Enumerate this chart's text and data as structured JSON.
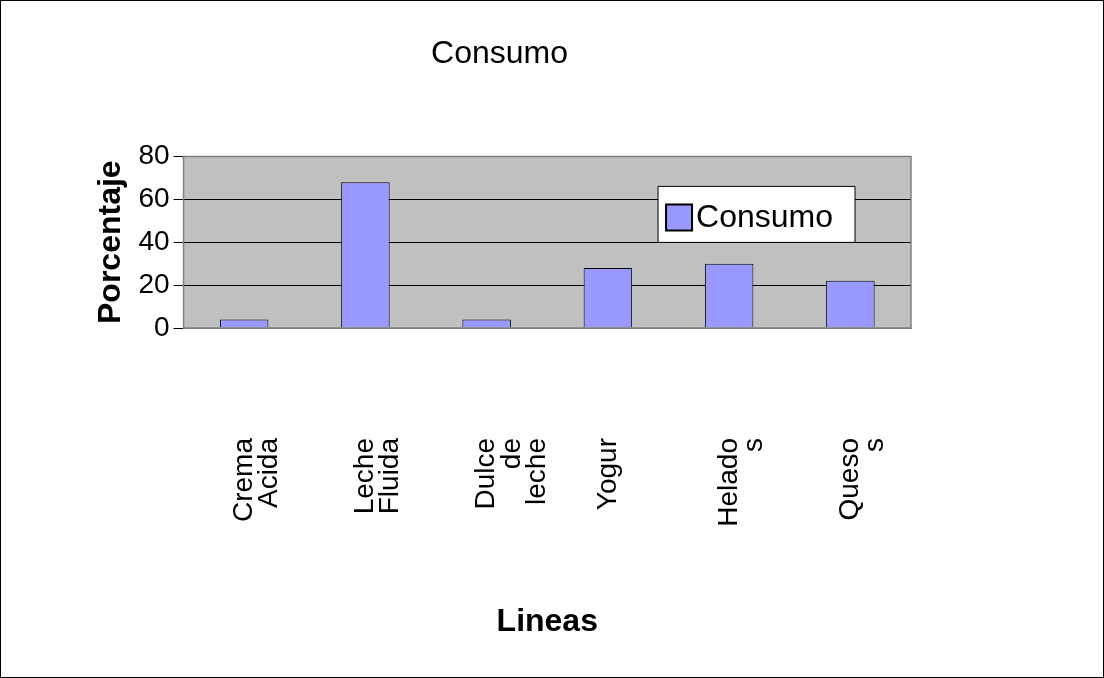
{
  "chart_data": {
    "type": "bar",
    "title": "Consumo",
    "xlabel": "Lineas",
    "ylabel": "Porcentaje",
    "categories": [
      "Crema\nAcida",
      "Leche\nFluida",
      "Dulce\nde\nleche",
      "Yogur",
      "Helado\ns",
      "Queso\ns"
    ],
    "series": [
      {
        "name": "Consumo",
        "color": "#9999ff",
        "values": [
          4,
          68,
          4,
          28,
          30,
          22
        ]
      }
    ],
    "ylim": [
      0,
      80
    ],
    "yticks": [
      0,
      20,
      40,
      60,
      80
    ],
    "grid": "y",
    "legend": "top right"
  }
}
